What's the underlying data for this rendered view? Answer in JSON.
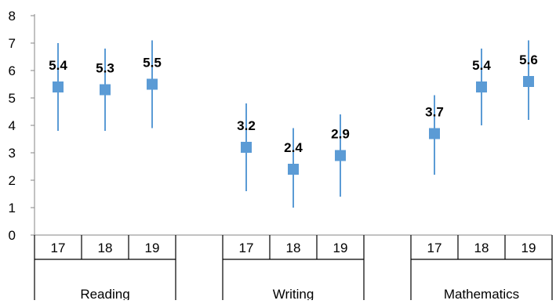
{
  "chart_data": {
    "type": "scatter",
    "title": "",
    "xlabel": "",
    "ylabel": "",
    "ylim": [
      0,
      8
    ],
    "y_ticks": [
      "0",
      "1",
      "2",
      "3",
      "4",
      "5",
      "6",
      "7",
      "8"
    ],
    "grid": false,
    "legend": "none",
    "marker_color": "#5B9BD5",
    "groups": [
      {
        "label": "Reading",
        "points": [
          {
            "x": "17",
            "y": 5.4,
            "low": 3.8,
            "high": 7.0,
            "label": "5.4"
          },
          {
            "x": "18",
            "y": 5.3,
            "low": 3.8,
            "high": 6.8,
            "label": "5.3"
          },
          {
            "x": "19",
            "y": 5.5,
            "low": 3.9,
            "high": 7.1,
            "label": "5.5"
          }
        ]
      },
      {
        "label": "",
        "points": []
      },
      {
        "label": "Writing",
        "points": [
          {
            "x": "17",
            "y": 3.2,
            "low": 1.6,
            "high": 4.8,
            "label": "3.2"
          },
          {
            "x": "18",
            "y": 2.4,
            "low": 1.0,
            "high": 3.9,
            "label": "2.4"
          },
          {
            "x": "19",
            "y": 2.9,
            "low": 1.4,
            "high": 4.4,
            "label": "2.9"
          }
        ]
      },
      {
        "label": "",
        "points": []
      },
      {
        "label": "Mathematics",
        "points": [
          {
            "x": "17",
            "y": 3.7,
            "low": 2.2,
            "high": 5.1,
            "label": "3.7"
          },
          {
            "x": "18",
            "y": 5.4,
            "low": 4.0,
            "high": 6.8,
            "label": "5.4"
          },
          {
            "x": "19",
            "y": 5.6,
            "low": 4.2,
            "high": 7.1,
            "label": "5.6"
          }
        ]
      }
    ]
  }
}
